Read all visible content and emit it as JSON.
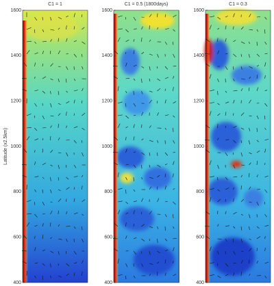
{
  "chart_data": [
    {
      "type": "field",
      "title": "C1 = 1",
      "ylabel": "Latitude (x2.5km)",
      "ylim": [
        400,
        1600
      ],
      "yticks": [
        400,
        600,
        800,
        1000,
        1200,
        1400,
        1600
      ]
    },
    {
      "type": "field",
      "title": "C1 = 0.5 (1800days)",
      "ylim": [
        400,
        1600
      ],
      "yticks": [
        400,
        600,
        800,
        1000,
        1200,
        1400,
        1600
      ]
    },
    {
      "type": "field",
      "title": "C1 = 0.3",
      "ylim": [
        400,
        1600
      ],
      "yticks": [
        400,
        600,
        800,
        1000,
        1200,
        1400,
        1600
      ]
    }
  ]
}
